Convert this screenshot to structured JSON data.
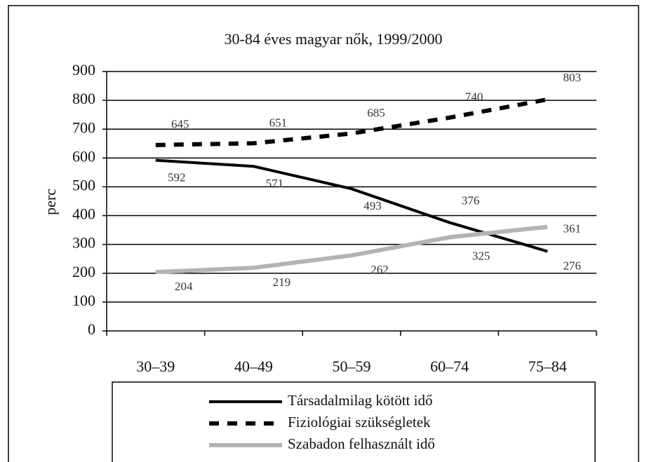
{
  "chart_data": {
    "type": "line",
    "title": "30-84 éves magyar nők, 1999/2000",
    "y_label": "perc",
    "categories": [
      "30–39",
      "40–49",
      "50–59",
      "60–74",
      "75–84"
    ],
    "series": [
      {
        "name": "Társadalmilag kötött idő",
        "color": "#000000",
        "values": [
          592,
          571,
          493,
          376,
          276
        ]
      },
      {
        "name": "Fiziológiai szükségletek",
        "color": "#000000",
        "dashed": true,
        "values": [
          645,
          651,
          685,
          740,
          803
        ]
      },
      {
        "name": "Szabadon felhasznált idő",
        "color": "#b3b3b3",
        "values": [
          204,
          219,
          262,
          325,
          361
        ]
      }
    ],
    "ylim": [
      0,
      900
    ],
    "yticks": [
      0,
      100,
      200,
      300,
      400,
      500,
      600,
      700,
      800,
      900
    ],
    "grid": true,
    "legend": "bottom"
  }
}
